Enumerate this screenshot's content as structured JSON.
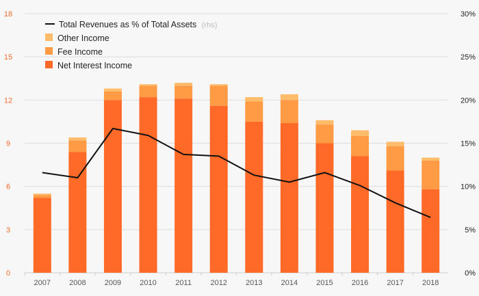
{
  "chart_data": {
    "type": "bar",
    "categories": [
      "2007",
      "2008",
      "2009",
      "2010",
      "2011",
      "2012",
      "2013",
      "2014",
      "2015",
      "2016",
      "2017",
      "2018"
    ],
    "series": [
      {
        "name": "Net Interest Income",
        "kind": "stacked-bar",
        "axis": "left",
        "values": [
          5.2,
          8.4,
          12.0,
          12.2,
          12.1,
          11.6,
          10.5,
          10.4,
          9.0,
          8.1,
          7.1,
          5.8
        ]
      },
      {
        "name": "Fee Income",
        "kind": "stacked-bar",
        "axis": "left",
        "values": [
          0.2,
          0.8,
          0.6,
          0.8,
          0.9,
          1.4,
          1.4,
          1.6,
          1.3,
          1.4,
          1.7,
          2.0
        ]
      },
      {
        "name": "Other Income",
        "kind": "stacked-bar",
        "axis": "left",
        "values": [
          0.1,
          0.2,
          0.2,
          0.1,
          0.2,
          0.1,
          0.3,
          0.4,
          0.3,
          0.4,
          0.3,
          0.2
        ]
      },
      {
        "name": "Total Revenues as % of Total Assets",
        "kind": "line",
        "axis": "right",
        "values": [
          11.6,
          11.0,
          16.7,
          15.9,
          13.7,
          13.5,
          11.3,
          10.5,
          11.6,
          10.1,
          8.1,
          6.4
        ]
      }
    ],
    "legend_note": "(rhs)",
    "yleft": {
      "lim": [
        0,
        18
      ],
      "ticks": [
        "0",
        "3",
        "6",
        "9",
        "12",
        "15",
        "18"
      ]
    },
    "yright": {
      "lim": [
        0,
        30
      ],
      "ticks": [
        "0%",
        "5%",
        "10%",
        "15%",
        "20%",
        "25%",
        "30%"
      ]
    },
    "grid": true,
    "legend_position": "top-left",
    "colors": {
      "net_interest": "#ff6a28",
      "fee": "#ff9a45",
      "other": "#ffbd6b",
      "line": "#111111",
      "left_ticks": "#f26b2a",
      "grid": "#dddddd"
    }
  }
}
